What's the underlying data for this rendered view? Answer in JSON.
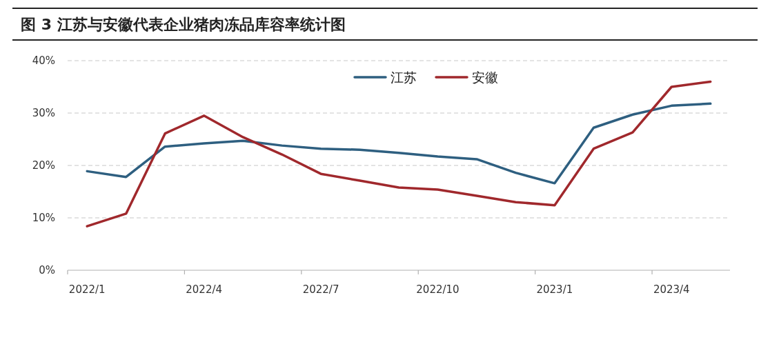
{
  "chart_data": {
    "type": "line",
    "title": "图 3 江苏与安徽代表企业猪肉冻品库容率统计图",
    "categories": [
      "2022/1",
      null,
      null,
      "2022/4",
      null,
      null,
      "2022/7",
      null,
      null,
      "2022/10",
      null,
      null,
      "2023/1",
      null,
      null,
      "2023/4",
      null
    ],
    "series": [
      {
        "name": "江苏",
        "color": "#2e5f80",
        "values": [
          18.9,
          17.8,
          23.6,
          24.2,
          24.7,
          23.8,
          23.2,
          23.0,
          22.4,
          21.7,
          21.2,
          18.6,
          16.6,
          27.2,
          29.7,
          31.4,
          31.8
        ]
      },
      {
        "name": "安徽",
        "color": "#a0282c",
        "values": [
          8.4,
          10.8,
          26.1,
          29.5,
          25.4,
          22.1,
          18.4,
          17.1,
          15.8,
          15.4,
          14.2,
          13.0,
          12.4,
          23.2,
          26.3,
          35.0,
          36.0
        ]
      }
    ],
    "ylim": [
      0,
      40
    ],
    "yticks": [
      {
        "value": 0,
        "label": "0%"
      },
      {
        "value": 10,
        "label": "10%"
      },
      {
        "value": 20,
        "label": "20%"
      },
      {
        "value": 30,
        "label": "30%"
      },
      {
        "value": 40,
        "label": "40%"
      }
    ],
    "grid": "y",
    "legend": "top"
  }
}
